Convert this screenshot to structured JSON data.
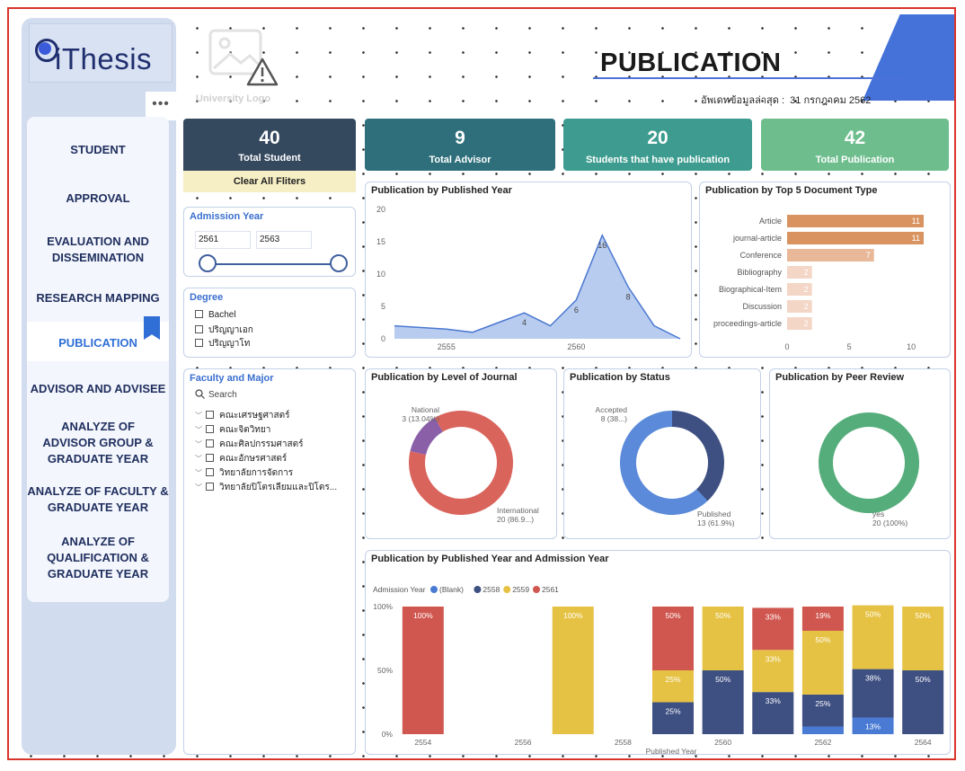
{
  "logo": {
    "text": "iThesis"
  },
  "sidebar": {
    "more_label": "•••",
    "items": [
      {
        "label": "STUDENT"
      },
      {
        "label": "APPROVAL"
      },
      {
        "label": "EVALUATION AND DISSEMINATION"
      },
      {
        "label": "RESEARCH MAPPING"
      },
      {
        "label": "PUBLICATION"
      },
      {
        "label": "ADVISOR AND ADVISEE"
      },
      {
        "label": "ANALYZE OF ADVISOR GROUP & GRADUATE YEAR"
      },
      {
        "label": "ANALYZE OF FACULTY & GRADUATE YEAR"
      },
      {
        "label": "ANALYZE OF QUALIFICATION & GRADUATE YEAR"
      }
    ]
  },
  "header": {
    "university_logo_label": "University Logo",
    "title": "PUBLICATION",
    "update_label": "อัพเดทข้อมูลล่าสุด :",
    "update_date": "31 กรกฎาคม 2562"
  },
  "cards": [
    {
      "value": "40",
      "label": "Total Student",
      "color": "#34485e"
    },
    {
      "value": "9",
      "label": "Total Advisor",
      "color": "#2e6f7b"
    },
    {
      "value": "20",
      "label": "Students that have publication",
      "color": "#3d9c8f"
    },
    {
      "value": "42",
      "label": "Total Publication",
      "color": "#6dbd8d"
    }
  ],
  "filters": {
    "clear_label": "Clear All Fliters",
    "admission_title": "Admission Year",
    "admission_from": "2561",
    "admission_to": "2563",
    "degree_title": "Degree",
    "degree_options": [
      "Bachel",
      "ปริญญาเอก",
      "ปริญญาโท"
    ],
    "faculty_title": "Faculty and Major",
    "search_placeholder": "Search",
    "faculty_options": [
      "คณะเศรษฐศาสตร์",
      "คณะจิตวิทยา",
      "คณะศิลปกรรมศาสตร์",
      "คณะอักษรศาสตร์",
      "วิทยาลัยการจัดการ",
      "วิทยาลัยปิโตรเลียมและปิโตร..."
    ]
  },
  "chart_data": [
    {
      "id": "published_year",
      "type": "area",
      "title": "Publication by Published Year",
      "x": [
        2553,
        2554,
        2555,
        2556,
        2557,
        2558,
        2559,
        2560,
        2561,
        2562,
        2563,
        2564
      ],
      "values": [
        2,
        null,
        1.5,
        1,
        2.5,
        4,
        2,
        6,
        16,
        8,
        2,
        0
      ],
      "point_labels": [
        "",
        "",
        "",
        "",
        "",
        "4",
        "",
        "6",
        "16",
        "8",
        "",
        ""
      ],
      "xticks": [
        "2555",
        "2560"
      ],
      "yticks": [
        "0",
        "5",
        "10",
        "15",
        "20"
      ],
      "ylim": [
        0,
        20
      ],
      "color": "#7da3e3"
    },
    {
      "id": "doc_type",
      "type": "bar",
      "title": "Publication by Top 5 Document Type",
      "categories": [
        "Article",
        "journal-article",
        "Conference",
        "Bibliography",
        "Biographical-Item",
        "Discussion",
        "proceedings-article"
      ],
      "values": [
        11,
        11,
        7,
        2,
        2,
        2,
        2
      ],
      "colors": [
        "#d89360",
        "#d89360",
        "#e8b898",
        "#f3d6c6",
        "#f3d6c6",
        "#f3d6c6",
        "#f3d6c6"
      ],
      "xticks": [
        "0",
        "5",
        "10"
      ],
      "xlim": [
        0,
        11
      ]
    },
    {
      "id": "level_journal",
      "type": "pie",
      "title": "Publication by Level of Journal",
      "labels": [
        "National",
        "International"
      ],
      "values": [
        3,
        20
      ],
      "label_lines": [
        [
          "National",
          "3 (13.04%)"
        ],
        [
          "International",
          "20 (86.9...)"
        ]
      ],
      "colors": [
        "#8a5fa8",
        "#d9645c"
      ]
    },
    {
      "id": "status",
      "type": "pie",
      "title": "Publication by Status",
      "labels": [
        "Accepted",
        "Published"
      ],
      "values": [
        8,
        13
      ],
      "label_lines": [
        [
          "Accepted",
          "8 (38...)"
        ],
        [
          "Published",
          "13 (61.9%)"
        ]
      ],
      "colors": [
        "#3e4f82",
        "#5a8ad9"
      ]
    },
    {
      "id": "peer_review",
      "type": "pie",
      "title": "Publication by Peer Review",
      "labels": [
        "yes"
      ],
      "values": [
        20
      ],
      "label_lines": [
        [
          "yes",
          "20 (100%)"
        ]
      ],
      "colors": [
        "#55ad7c"
      ]
    },
    {
      "id": "pub_admission",
      "type": "bar",
      "stacked": true,
      "title": "Publication by Published Year and Admission Year",
      "legend_title": "Admission Year",
      "series": [
        {
          "name": "(Blank)",
          "color": "#4a7bd4"
        },
        {
          "name": "2558",
          "color": "#3e4f82"
        },
        {
          "name": "2559",
          "color": "#e6c244"
        },
        {
          "name": "2561",
          "color": "#d0574f"
        }
      ],
      "xlabel": "Published Year",
      "xticks": [
        "2554",
        "2556",
        "2558",
        "2560",
        "2562",
        "2564"
      ],
      "yticks": [
        "0%",
        "50%",
        "100%"
      ],
      "columns": [
        {
          "segments": [
            [
              3,
              100,
              "100%"
            ]
          ]
        },
        {
          "segments": []
        },
        {
          "segments": []
        },
        {
          "segments": [
            [
              2,
              100,
              "100%"
            ]
          ]
        },
        {
          "segments": []
        },
        {
          "segments": [
            [
              1,
              25,
              "25%"
            ],
            [
              2,
              25,
              "25%"
            ],
            [
              3,
              50,
              "50%"
            ]
          ]
        },
        {
          "segments": [
            [
              1,
              50,
              "50%"
            ],
            [
              2,
              50,
              "50%"
            ]
          ]
        },
        {
          "segments": [
            [
              1,
              33,
              "33%"
            ],
            [
              2,
              33,
              "33%"
            ],
            [
              3,
              33,
              "33%"
            ]
          ]
        },
        {
          "segments": [
            [
              0,
              6,
              ""
            ],
            [
              1,
              25,
              "25%"
            ],
            [
              2,
              50,
              "50%"
            ],
            [
              3,
              19,
              "19%"
            ]
          ]
        },
        {
          "segments": [
            [
              0,
              13,
              "13%"
            ],
            [
              1,
              38,
              "38%"
            ],
            [
              2,
              50,
              "50%"
            ]
          ]
        },
        {
          "segments": [
            [
              1,
              50,
              "50%"
            ],
            [
              2,
              50,
              "50%"
            ]
          ]
        }
      ]
    }
  ]
}
